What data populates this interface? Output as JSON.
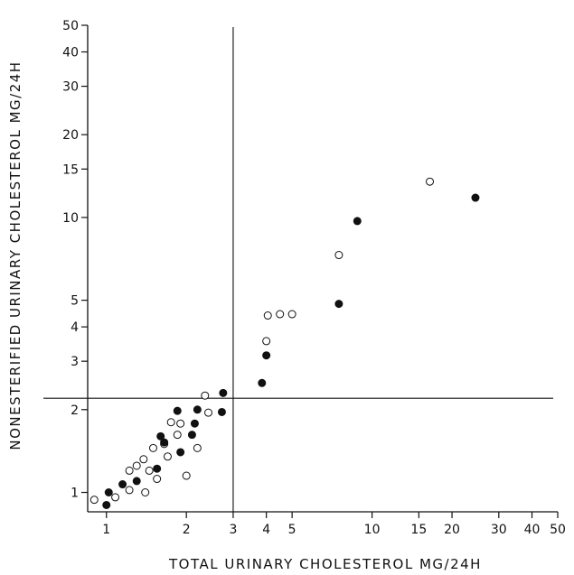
{
  "chart_data": {
    "type": "scatter",
    "title": "",
    "xlabel": "TOTAL URINARY CHOLESTEROL MG/24H",
    "ylabel": "NONESTERIFIED URINARY CHOLESTEROL MG/24H",
    "x_scale": "log",
    "y_scale": "log",
    "xlim": [
      0.85,
      50
    ],
    "ylim": [
      0.85,
      50
    ],
    "x_ticks": [
      1,
      2,
      3,
      4,
      5,
      10,
      15,
      20,
      30,
      40,
      50
    ],
    "y_ticks": [
      1,
      2,
      3,
      4,
      5,
      10,
      15,
      20,
      30,
      40,
      50
    ],
    "x_tick_labels": [
      "1",
      "2",
      "3",
      "4",
      "5",
      "10",
      "15",
      "20",
      "30",
      "40",
      "50"
    ],
    "y_tick_labels": [
      "1",
      "2",
      "3",
      "4",
      "5",
      "10",
      "15",
      "20",
      "30",
      "40",
      "50"
    ],
    "grid": false,
    "legend": "none",
    "reference_lines": [
      {
        "orientation": "vertical",
        "value": 3.0
      },
      {
        "orientation": "horizontal",
        "value": 2.2
      }
    ],
    "series": [
      {
        "marker": "open-circle",
        "points": [
          [
            0.9,
            0.94
          ],
          [
            1.08,
            0.96
          ],
          [
            1.22,
            1.02
          ],
          [
            1.22,
            1.2
          ],
          [
            1.3,
            1.25
          ],
          [
            1.38,
            1.32
          ],
          [
            1.4,
            1.0
          ],
          [
            1.45,
            1.2
          ],
          [
            1.5,
            1.45
          ],
          [
            1.55,
            1.12
          ],
          [
            1.65,
            1.5
          ],
          [
            1.7,
            1.35
          ],
          [
            1.75,
            1.8
          ],
          [
            1.85,
            1.62
          ],
          [
            1.9,
            1.78
          ],
          [
            2.0,
            1.15
          ],
          [
            2.2,
            1.45
          ],
          [
            2.35,
            2.25
          ],
          [
            2.42,
            1.95
          ],
          [
            4.0,
            3.55
          ],
          [
            4.05,
            4.4
          ],
          [
            4.5,
            4.45
          ],
          [
            5.0,
            4.45
          ],
          [
            7.5,
            7.3
          ],
          [
            16.5,
            13.5
          ]
        ]
      },
      {
        "marker": "filled-circle",
        "points": [
          [
            1.0,
            0.9
          ],
          [
            1.02,
            1.0
          ],
          [
            1.15,
            1.07
          ],
          [
            1.3,
            1.1
          ],
          [
            1.55,
            1.22
          ],
          [
            1.6,
            1.6
          ],
          [
            1.65,
            1.52
          ],
          [
            1.85,
            1.98
          ],
          [
            1.9,
            1.4
          ],
          [
            2.1,
            1.62
          ],
          [
            2.15,
            1.78
          ],
          [
            2.2,
            2.0
          ],
          [
            2.72,
            1.96
          ],
          [
            2.75,
            2.3
          ],
          [
            3.85,
            2.5
          ],
          [
            4.0,
            3.15
          ],
          [
            7.5,
            4.85
          ],
          [
            8.8,
            9.7
          ],
          [
            24.5,
            11.8
          ]
        ]
      }
    ]
  }
}
